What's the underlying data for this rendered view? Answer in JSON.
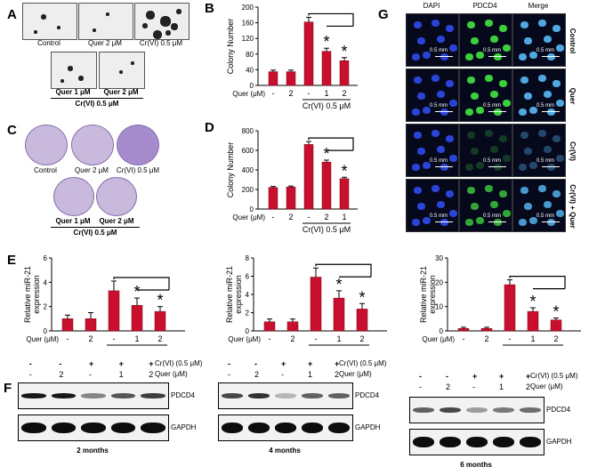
{
  "panels": {
    "A": {
      "label": "A",
      "top_row": [
        "Control",
        "Quer 2 μM",
        "Cr(VI) 0.5 μM"
      ],
      "bottom_row": [
        "Quer 1 μM",
        "Quer 2 μM"
      ],
      "bottom_group": "Cr(VI) 0.5 μM"
    },
    "C": {
      "label": "C",
      "top_row": [
        "Control",
        "Quer 2 μM",
        "Cr(VI) 0.5 μM"
      ],
      "bottom_row": [
        "Quer 1 μM",
        "Quer 2 μM"
      ],
      "bottom_group": "Cr(VI) 0.5 μM"
    },
    "E": {
      "label": "E"
    },
    "F": {
      "label": "F",
      "plus_minus": [
        "-",
        "-",
        "+",
        "+",
        "+"
      ],
      "quer_vals": [
        "-",
        "2",
        "-",
        "1",
        "2"
      ],
      "crvi_label": "Cr(VI) (0.5 μM)",
      "quer_label": "Quer (μM)",
      "protein": "PDCD4",
      "loading": "GAPDH",
      "times": [
        "2 months",
        "4 months",
        "6 months"
      ]
    },
    "G": {
      "label": "G",
      "columns": [
        "DAPI",
        "PDCD4",
        "Merge"
      ],
      "rows": [
        "Control",
        "Quer",
        "Cr(VI)",
        "Cr(VI) + Quer"
      ],
      "scale": "0.5 mm"
    }
  },
  "chart_data": [
    {
      "id": "B",
      "type": "bar",
      "title": "B",
      "ylabel": "Colony Number",
      "xlabel": "Quer (μM)",
      "ylim": [
        0,
        200
      ],
      "yticks": [
        0,
        40,
        80,
        120,
        160,
        200
      ],
      "categories": [
        "-",
        "2",
        "-",
        "1",
        "2"
      ],
      "group_label": "Cr(VI) 0.5 μM",
      "values": [
        35,
        35,
        162,
        87,
        63
      ],
      "errors": [
        4,
        4,
        12,
        8,
        8
      ],
      "star": [
        false,
        false,
        false,
        true,
        true
      ]
    },
    {
      "id": "D",
      "type": "bar",
      "title": "D",
      "ylabel": "Colony Number",
      "xlabel": "Quer (μM)",
      "ylim": [
        0,
        800
      ],
      "yticks": [
        0,
        200,
        400,
        600,
        800
      ],
      "categories": [
        "-",
        "2",
        "-",
        "2",
        "1"
      ],
      "group_label": "Cr(VI) 0.5 μM",
      "values": [
        220,
        225,
        660,
        480,
        310
      ],
      "errors": [
        10,
        10,
        30,
        20,
        15
      ],
      "star": [
        false,
        false,
        false,
        true,
        true
      ]
    },
    {
      "id": "E1",
      "type": "bar",
      "title": "",
      "ylabel": "Relative miR-21 expression",
      "xlabel": "Quer (μM)",
      "ylim": [
        0,
        6
      ],
      "yticks": [
        0,
        2,
        4,
        6
      ],
      "categories": [
        "-",
        "2",
        "-",
        "1",
        "2"
      ],
      "group_label": "Cr(VI) 0.5 μM",
      "values": [
        1.0,
        1.0,
        3.3,
        2.1,
        1.6
      ],
      "errors": [
        0.3,
        0.5,
        0.8,
        0.6,
        0.4
      ],
      "star": [
        false,
        false,
        false,
        true,
        true
      ]
    },
    {
      "id": "E2",
      "type": "bar",
      "title": "",
      "ylabel": "Relative miR-21 expression",
      "xlabel": "Quer (μM)",
      "ylim": [
        0,
        8
      ],
      "yticks": [
        0,
        2,
        4,
        6,
        8
      ],
      "categories": [
        "-",
        "2",
        "-",
        "1",
        "2"
      ],
      "group_label": "Cr(VI) 0.5 μM",
      "values": [
        1.0,
        1.0,
        5.9,
        3.6,
        2.4
      ],
      "errors": [
        0.3,
        0.3,
        1.0,
        0.8,
        0.6
      ],
      "star": [
        false,
        false,
        false,
        true,
        true
      ]
    },
    {
      "id": "E3",
      "type": "bar",
      "title": "",
      "ylabel": "Relative miR-21 expression",
      "xlabel": "Quer (μM)",
      "ylim": [
        0,
        30
      ],
      "yticks": [
        0,
        10,
        20,
        30
      ],
      "categories": [
        "-",
        "2",
        "-",
        "1",
        "2"
      ],
      "group_label": "Cr(VI) 0.5 μM",
      "values": [
        1.0,
        1.0,
        19.0,
        8.0,
        4.5
      ],
      "errors": [
        0.5,
        0.5,
        2.0,
        1.5,
        0.8
      ],
      "star": [
        false,
        false,
        false,
        true,
        true
      ]
    }
  ],
  "colors": {
    "bar": "#c8102e",
    "axis": "#000000",
    "dapi": "#2a44d8",
    "pdcd4": "#3ccf3c",
    "merge": "#4fa8e0"
  }
}
